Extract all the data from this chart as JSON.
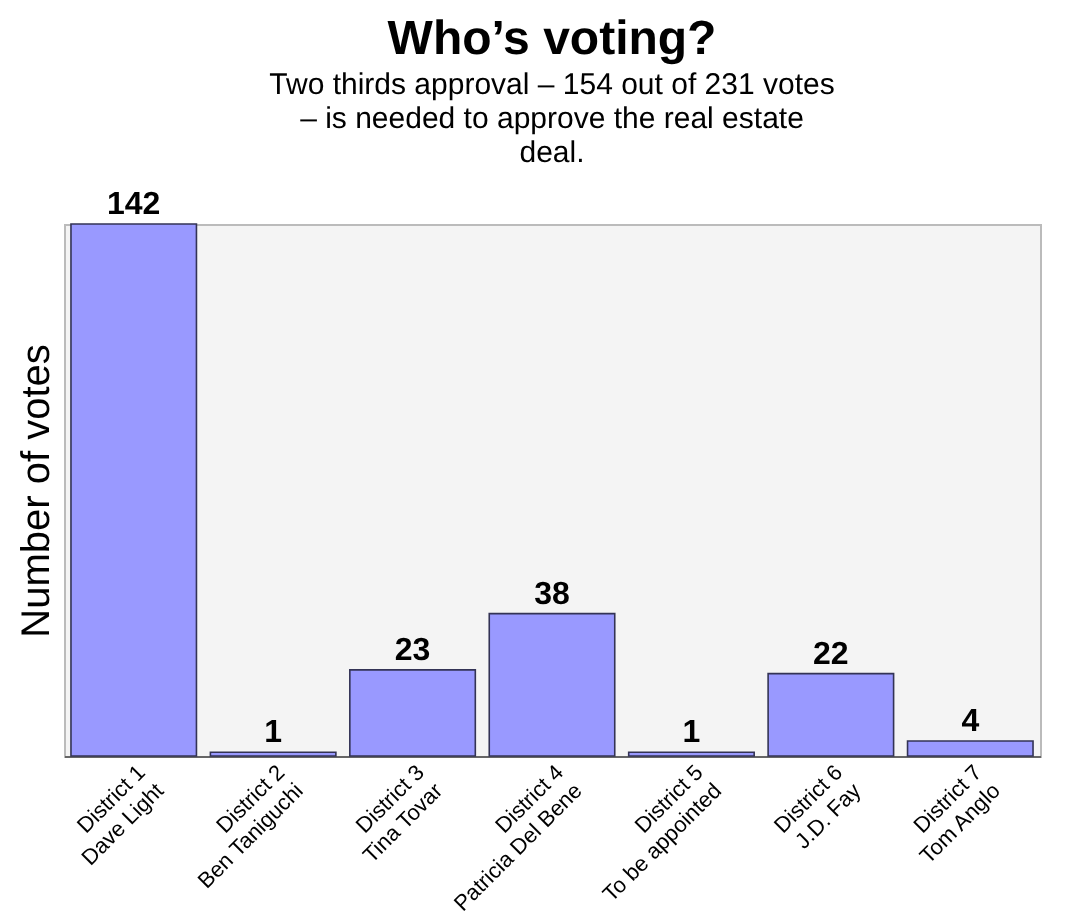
{
  "chart_data": {
    "type": "bar",
    "title": "Who’s voting?",
    "subtitle": "Two thirds approval – 154 out of 231 votes – is needed to approve the real estate deal.",
    "ylabel": "Number of votes",
    "categories": [
      "District 1\nDave Light",
      "District 2\nBen Taniguchi",
      "District 3\nTina Tovar",
      "District 4\nPatricia Del Bene",
      "District 5\nTo be appointed",
      "District 6\nJ.D. Fay",
      "District 7\nTom Anglo"
    ],
    "values": [
      142,
      1,
      23,
      38,
      1,
      22,
      4
    ],
    "color": "#9999ff",
    "data_labels": true
  }
}
